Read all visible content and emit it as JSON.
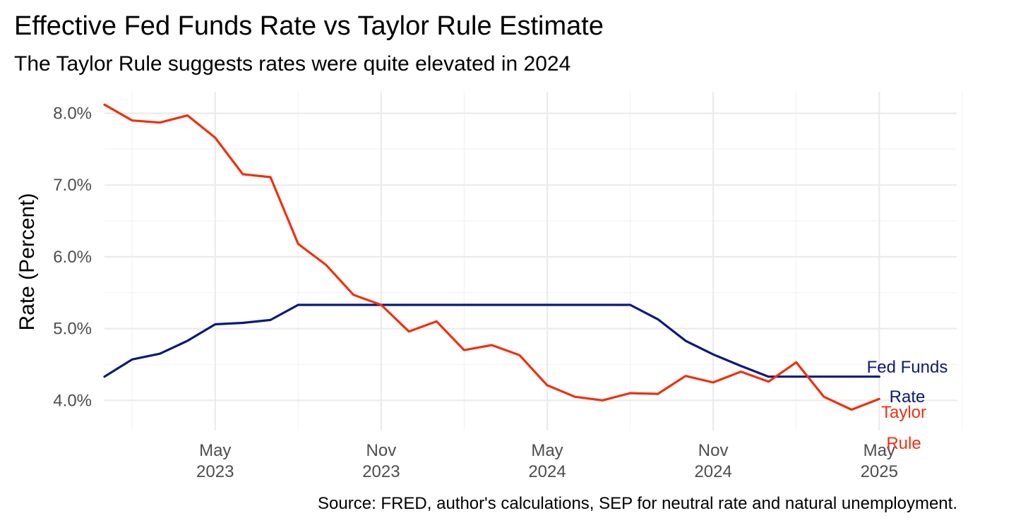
{
  "chart_data": {
    "type": "line",
    "title": "Effective Fed Funds Rate vs Taylor Rule Estimate",
    "subtitle": "The Taylor Rule suggests rates were quite elevated in 2024",
    "xlabel": "",
    "ylabel": "Rate (Percent)",
    "caption": "Source: FRED, author's calculations, SEP for neutral rate and natural unemployment.",
    "x_start": "2023-01",
    "x_end": "2025-04",
    "xlim_months": [
      -1,
      29.8
    ],
    "ylim": [
      3.58,
      8.3
    ],
    "y_ticks": [
      {
        "value": 4,
        "label": "4.0%"
      },
      {
        "value": 5,
        "label": "5.0%"
      },
      {
        "value": 6,
        "label": "6.0%"
      },
      {
        "value": 7,
        "label": "7.0%"
      },
      {
        "value": 8,
        "label": "8.0%"
      }
    ],
    "y_minor_ticks": [
      4.5,
      5.5,
      6.5,
      7.5
    ],
    "x_ticks": [
      {
        "month": 3,
        "line1": "May",
        "line2": "2023"
      },
      {
        "month": 9,
        "line1": "Nov",
        "line2": "2023"
      },
      {
        "month": 15,
        "line1": "May",
        "line2": "2024"
      },
      {
        "month": 21,
        "line1": "Nov",
        "line2": "2024"
      },
      {
        "month": 27,
        "line1": "May",
        "line2": "2025"
      }
    ],
    "x_minor_ticks": [
      0,
      6,
      12,
      18,
      24,
      30
    ],
    "series": [
      {
        "name": "Fed Funds Rate",
        "label_lines": [
          "Fed Funds",
          "Rate"
        ],
        "color": "#0a1a7a",
        "x_months": [
          -1,
          0,
          1,
          2,
          3,
          4,
          5,
          6,
          7,
          8,
          9,
          10,
          11,
          12,
          13,
          14,
          15,
          16,
          17,
          18,
          19,
          20,
          21,
          22,
          23,
          24,
          25,
          26,
          27
        ],
        "values": [
          4.33,
          4.57,
          4.65,
          4.83,
          5.06,
          5.08,
          5.12,
          5.33,
          5.33,
          5.33,
          5.33,
          5.33,
          5.33,
          5.33,
          5.33,
          5.33,
          5.33,
          5.33,
          5.33,
          5.33,
          5.13,
          4.83,
          4.64,
          4.48,
          4.33,
          4.33,
          4.33,
          4.33,
          4.33
        ]
      },
      {
        "name": "Taylor Rule",
        "label_lines": [
          "Taylor",
          "Rule"
        ],
        "color": "#f03010",
        "x_months": [
          -1,
          0,
          1,
          2,
          3,
          4,
          5,
          6,
          7,
          8,
          9,
          10,
          11,
          12,
          13,
          14,
          15,
          16,
          17,
          18,
          19,
          20,
          21,
          22,
          23,
          24,
          25,
          26,
          27
        ],
        "values": [
          8.12,
          7.9,
          7.87,
          7.97,
          7.66,
          7.15,
          7.11,
          6.18,
          5.89,
          5.47,
          5.33,
          4.96,
          5.1,
          4.7,
          4.77,
          4.63,
          4.21,
          4.05,
          4.0,
          4.1,
          4.09,
          4.34,
          4.25,
          4.4,
          4.26,
          4.53,
          4.05,
          3.87,
          4.02
        ]
      }
    ]
  }
}
